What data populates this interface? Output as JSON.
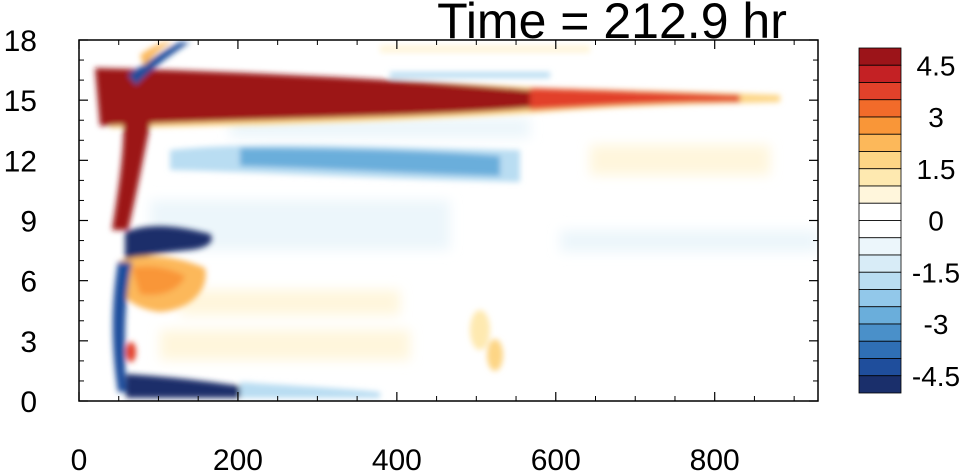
{
  "chart_data": {
    "type": "heatmap",
    "title": "Time = 212.9 hr",
    "xlabel": "",
    "ylabel": "",
    "xlim": [
      0,
      930
    ],
    "ylim": [
      0,
      18
    ],
    "x_ticks": [
      0,
      200,
      400,
      600,
      800
    ],
    "y_ticks": [
      0,
      3,
      6,
      9,
      12,
      15,
      18
    ],
    "grid": false,
    "colorbar": {
      "levels": [
        -5,
        -4.5,
        -4,
        -3.5,
        -3,
        -2.5,
        -2,
        -1.5,
        -1,
        -0.5,
        0,
        0.5,
        1,
        1.5,
        2,
        2.5,
        3,
        3.5,
        4,
        4.5,
        5
      ],
      "labels": [
        "4.5",
        "3",
        "1.5",
        "0",
        "-1.5",
        "-3",
        "-4.5"
      ],
      "label_values": [
        4.5,
        3,
        1.5,
        0,
        -1.5,
        -3,
        -4.5
      ],
      "colors": [
        "#1a2f6b",
        "#1f4e9c",
        "#2f6fb5",
        "#4a90c9",
        "#6aaedb",
        "#92c8ea",
        "#b9ddf2",
        "#d8ecf7",
        "#ecf6fb",
        "#ffffff",
        "#ffffff",
        "#fff6dc",
        "#fee9b0",
        "#fdd585",
        "#fcb85a",
        "#f99638",
        "#f26b2a",
        "#e2412a",
        "#c42124",
        "#9c1419"
      ]
    },
    "features": [
      {
        "x0": 100,
        "x1": 540,
        "y": 15.4,
        "value": 5.5,
        "desc": "strong positive band"
      },
      {
        "x0": 540,
        "x1": 780,
        "y": 15.2,
        "value": 3.2,
        "desc": "positive band tail"
      },
      {
        "x0": 180,
        "x1": 550,
        "y": 12.0,
        "value": -2.8,
        "desc": "negative band"
      },
      {
        "x0": 60,
        "x1": 190,
        "y": 0.7,
        "value": -5.0,
        "desc": "near-surface negative"
      },
      {
        "x0": 75,
        "x1": 160,
        "y": 8.0,
        "value": -5.0,
        "desc": "mid-level negative core"
      },
      {
        "x0": 70,
        "x1": 150,
        "y": 6.2,
        "value": 2.5,
        "desc": "mid-level positive"
      },
      {
        "x0": 550,
        "x1": 930,
        "y": 8.0,
        "value": -0.8,
        "desc": "weak negative band"
      },
      {
        "x0": 570,
        "x1": 780,
        "y": 12.3,
        "value": 0.8,
        "desc": "weak positive band"
      }
    ]
  }
}
